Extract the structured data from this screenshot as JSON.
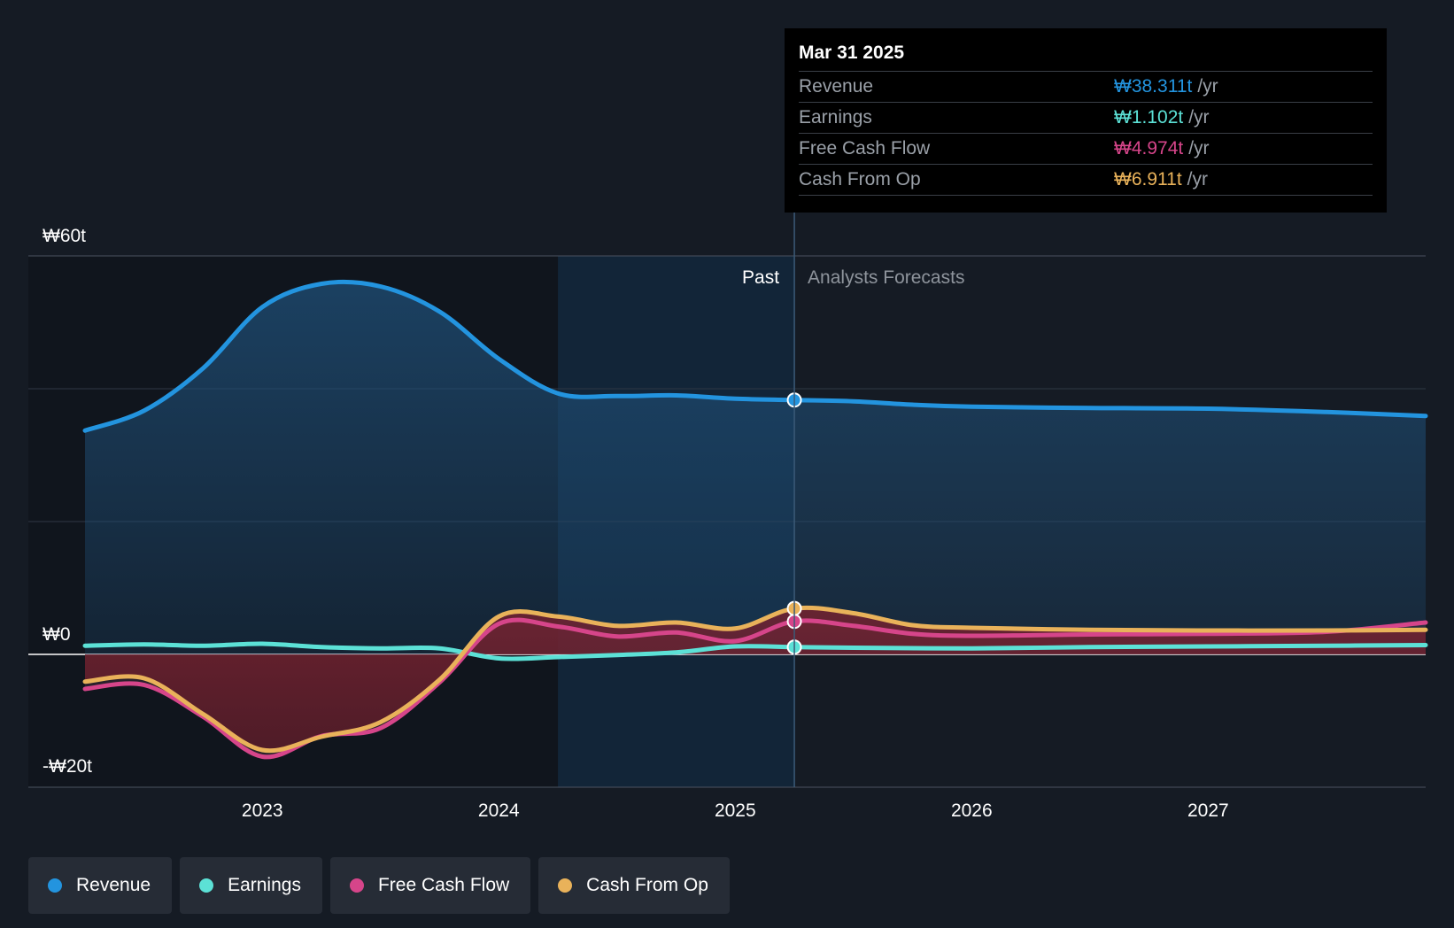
{
  "chart_data": {
    "type": "line",
    "y_unit_labels": {
      "top": "₩60t",
      "zero": "₩0",
      "bottom": "-₩20t"
    },
    "ylim": [
      -20,
      60
    ],
    "xlim": [
      2022.25,
      2027.92
    ],
    "x_ticks": [
      {
        "value": 2023,
        "label": "2023"
      },
      {
        "value": 2024,
        "label": "2024"
      },
      {
        "value": 2025,
        "label": "2025"
      },
      {
        "value": 2026,
        "label": "2026"
      },
      {
        "value": 2027,
        "label": "2027"
      }
    ],
    "gridlines": [
      60,
      40,
      20,
      0,
      -20
    ],
    "past_label": "Past",
    "forecast_label": "Analysts Forecasts",
    "past_end_x": 2025.25,
    "highlight_start_x": 2024.25,
    "series": [
      {
        "name": "Revenue",
        "color": "#2394df",
        "points": [
          [
            2022.25,
            33.7
          ],
          [
            2022.5,
            36.7
          ],
          [
            2022.75,
            43.1
          ],
          [
            2023.0,
            52.3
          ],
          [
            2023.25,
            55.8
          ],
          [
            2023.5,
            55.4
          ],
          [
            2023.75,
            51.6
          ],
          [
            2024.0,
            44.5
          ],
          [
            2024.25,
            39.3
          ],
          [
            2024.5,
            38.9
          ],
          [
            2024.75,
            39.0
          ],
          [
            2025.0,
            38.5
          ],
          [
            2025.25,
            38.3
          ],
          [
            2025.5,
            38.1
          ],
          [
            2025.75,
            37.6
          ],
          [
            2026.0,
            37.3
          ],
          [
            2026.5,
            37.1
          ],
          [
            2027.0,
            37.0
          ],
          [
            2027.5,
            36.5
          ],
          [
            2027.92,
            35.9
          ]
        ]
      },
      {
        "name": "Earnings",
        "color": "#5ce1d6",
        "points": [
          [
            2022.25,
            1.3
          ],
          [
            2022.5,
            1.5
          ],
          [
            2022.75,
            1.3
          ],
          [
            2023.0,
            1.6
          ],
          [
            2023.25,
            1.1
          ],
          [
            2023.5,
            0.9
          ],
          [
            2023.75,
            0.9
          ],
          [
            2024.0,
            -0.6
          ],
          [
            2024.25,
            -0.4
          ],
          [
            2024.5,
            -0.1
          ],
          [
            2024.75,
            0.3
          ],
          [
            2025.0,
            1.2
          ],
          [
            2025.25,
            1.1
          ],
          [
            2025.5,
            1.0
          ],
          [
            2026.0,
            0.9
          ],
          [
            2026.5,
            1.1
          ],
          [
            2027.0,
            1.2
          ],
          [
            2027.5,
            1.3
          ],
          [
            2027.92,
            1.4
          ]
        ]
      },
      {
        "name": "Free Cash Flow",
        "color": "#d6458a",
        "points": [
          [
            2022.25,
            -5.2
          ],
          [
            2022.5,
            -4.6
          ],
          [
            2022.75,
            -9.4
          ],
          [
            2023.0,
            -15.4
          ],
          [
            2023.25,
            -12.3
          ],
          [
            2023.5,
            -11.1
          ],
          [
            2023.75,
            -4.2
          ],
          [
            2024.0,
            4.6
          ],
          [
            2024.25,
            4.2
          ],
          [
            2024.5,
            2.7
          ],
          [
            2024.75,
            3.3
          ],
          [
            2025.0,
            2.0
          ],
          [
            2025.25,
            4.97
          ],
          [
            2025.5,
            4.3
          ],
          [
            2025.75,
            3.1
          ],
          [
            2026.0,
            2.8
          ],
          [
            2026.5,
            3.0
          ],
          [
            2027.0,
            3.1
          ],
          [
            2027.5,
            3.4
          ],
          [
            2027.92,
            4.8
          ]
        ]
      },
      {
        "name": "Cash From Op",
        "color": "#e9b25a",
        "points": [
          [
            2022.25,
            -4.1
          ],
          [
            2022.5,
            -3.6
          ],
          [
            2022.75,
            -9.0
          ],
          [
            2023.0,
            -14.4
          ],
          [
            2023.25,
            -12.4
          ],
          [
            2023.5,
            -10.2
          ],
          [
            2023.75,
            -3.8
          ],
          [
            2024.0,
            5.7
          ],
          [
            2024.25,
            5.7
          ],
          [
            2024.5,
            4.3
          ],
          [
            2024.75,
            4.8
          ],
          [
            2025.0,
            3.9
          ],
          [
            2025.25,
            6.91
          ],
          [
            2025.5,
            6.2
          ],
          [
            2025.75,
            4.4
          ],
          [
            2026.0,
            4.0
          ],
          [
            2026.5,
            3.7
          ],
          [
            2027.0,
            3.6
          ],
          [
            2027.5,
            3.6
          ],
          [
            2027.92,
            3.7
          ]
        ]
      }
    ]
  },
  "tooltip": {
    "date": "Mar 31 2025",
    "rows": [
      {
        "label": "Revenue",
        "value": "₩38.311t",
        "unit": "/yr",
        "color": "#2394df"
      },
      {
        "label": "Earnings",
        "value": "₩1.102t",
        "unit": "/yr",
        "color": "#5ce1d6"
      },
      {
        "label": "Free Cash Flow",
        "value": "₩4.974t",
        "unit": "/yr",
        "color": "#d6458a"
      },
      {
        "label": "Cash From Op",
        "value": "₩6.911t",
        "unit": "/yr",
        "color": "#e9b25a"
      }
    ]
  },
  "legend": [
    {
      "label": "Revenue",
      "color": "#2394df"
    },
    {
      "label": "Earnings",
      "color": "#5ce1d6"
    },
    {
      "label": "Free Cash Flow",
      "color": "#d6458a"
    },
    {
      "label": "Cash From Op",
      "color": "#e9b25a"
    }
  ]
}
